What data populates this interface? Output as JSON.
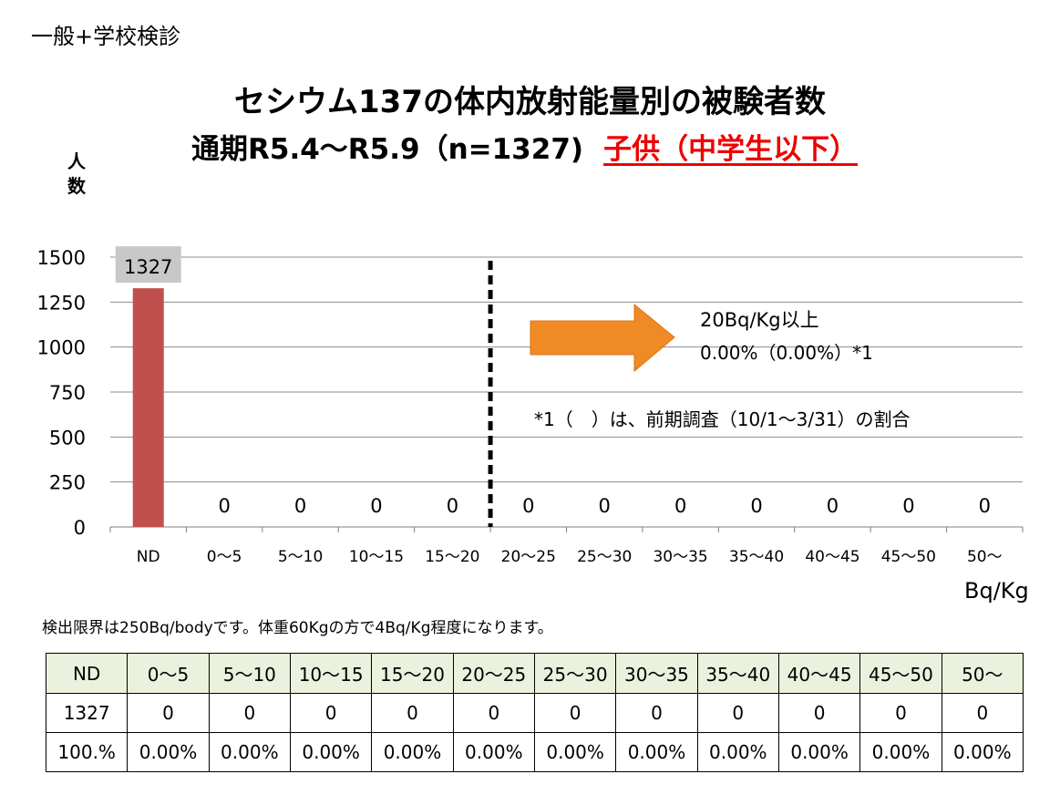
{
  "header": {
    "corner_label": "一般+学校検診",
    "title_line1": "セシウム137の体内放射能量別の被験者数",
    "title_line2": "通期R5.4～R5.9（n=1327)",
    "title_red": "子供（中学生以下）"
  },
  "colors": {
    "bar": "#c0504d",
    "arrow": "#f08a24",
    "highlight_text": "#ee0000"
  },
  "chart_data": {
    "type": "bar",
    "ylabel": "人数",
    "xunit": "Bq/Kg",
    "categories": [
      "ND",
      "0～5",
      "5～10",
      "10～15",
      "15～20",
      "20～25",
      "25～30",
      "30～35",
      "35～40",
      "40～45",
      "45～50",
      "50～"
    ],
    "values": [
      1327,
      0,
      0,
      0,
      0,
      0,
      0,
      0,
      0,
      0,
      0,
      0
    ],
    "data_labels": [
      "1327",
      "0",
      "0",
      "0",
      "0",
      "0",
      "0",
      "0",
      "0",
      "0",
      "0",
      "0"
    ],
    "ylim": [
      0,
      1500
    ],
    "yticks": [
      0,
      250,
      500,
      750,
      1000,
      1250,
      1500
    ],
    "grid": true,
    "threshold_after_category": "15～20",
    "annotations": {
      "arrow_label1": "20Bq/Kg以上",
      "arrow_label2": "0.00%（0.00%）*1",
      "footnote": "*1（　）は、前期調査（10/1～3/31）の割合"
    }
  },
  "note": "検出限界は250Bq/bodyです。体重60Kgの方で4Bq/Kg程度になります。",
  "table": {
    "header": [
      "ND",
      "0～5",
      "5～10",
      "10～15",
      "15～20",
      "20～25",
      "25～30",
      "30～35",
      "35～40",
      "40～45",
      "45～50",
      "50～"
    ],
    "counts": [
      "1327",
      "0",
      "0",
      "0",
      "0",
      "0",
      "0",
      "0",
      "0",
      "0",
      "0",
      "0"
    ],
    "percents": [
      "100.%",
      "0.00%",
      "0.00%",
      "0.00%",
      "0.00%",
      "0.00%",
      "0.00%",
      "0.00%",
      "0.00%",
      "0.00%",
      "0.00%",
      "0.00%"
    ]
  }
}
